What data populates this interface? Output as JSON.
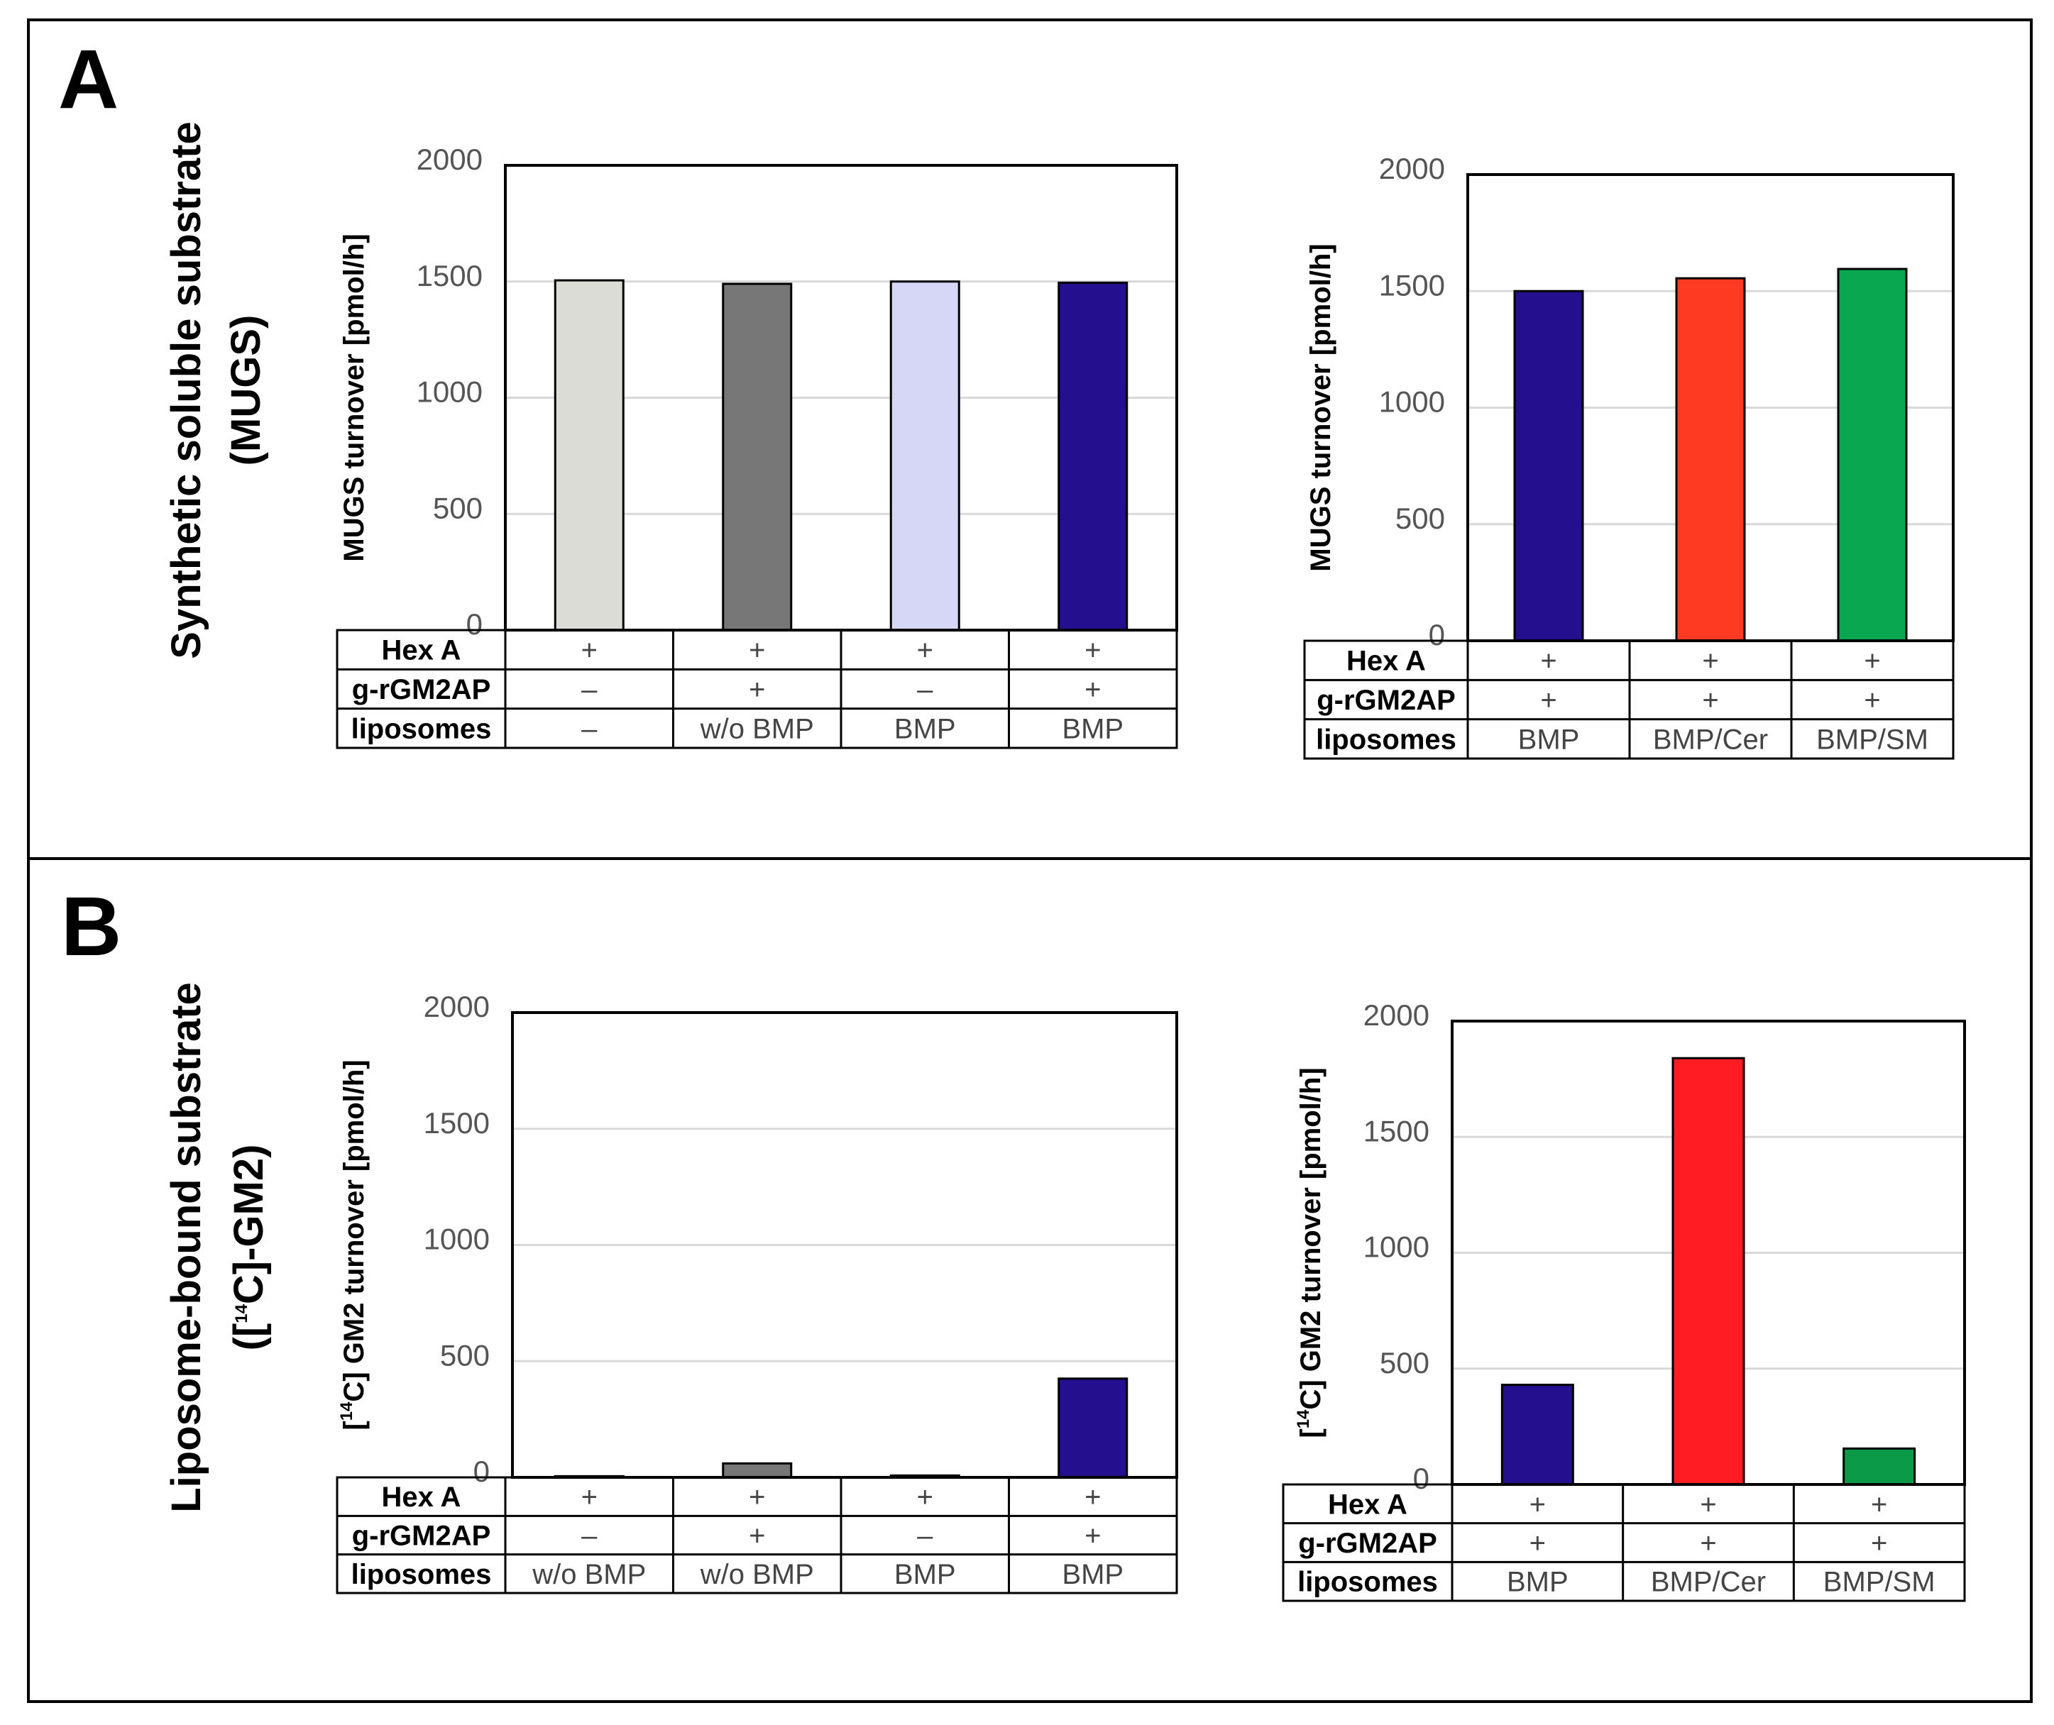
{
  "panels": [
    {
      "letter": "A",
      "row_title_line1": "Synthetic soluble substrate",
      "row_title_line2": "(MUGS)"
    },
    {
      "letter": "B",
      "row_title_line1": "Liposome-bound substrate",
      "row_title_line2_pre": "([",
      "row_title_line2_sup": "14",
      "row_title_line2_post": "C]-GM2)"
    }
  ],
  "row_labels": {
    "hexa": "Hex A",
    "gm2ap": "g-rGM2AP",
    "lipo": "liposomes"
  },
  "chart_data": [
    {
      "id": "A-left",
      "type": "bar",
      "ylabel": "MUGS turnover [pmol/h]",
      "ylim": [
        0,
        2000
      ],
      "yticks": [
        "2000",
        "1500",
        "1000",
        "500",
        "0"
      ],
      "categories": [
        "1",
        "2",
        "3",
        "4"
      ],
      "values": [
        1505,
        1490,
        1500,
        1495
      ],
      "colors": [
        "#dcdcd6",
        "#777777",
        "#d6d6f6",
        "#24108f"
      ],
      "rows": {
        "hexa": [
          "+",
          "+",
          "+",
          "+"
        ],
        "gm2ap": [
          "–",
          "+",
          "–",
          "+"
        ],
        "lipo": [
          "–",
          "w/o BMP",
          "BMP",
          "BMP"
        ]
      }
    },
    {
      "id": "A-right",
      "type": "bar",
      "ylabel": "MUGS turnover [pmol/h]",
      "ylim": [
        0,
        2000
      ],
      "yticks": [
        "2000",
        "1500",
        "1000",
        "500",
        "0"
      ],
      "categories": [
        "1",
        "2",
        "3"
      ],
      "values": [
        1500,
        1555,
        1595
      ],
      "colors": [
        "#24108f",
        "#ff3a22",
        "#09a850"
      ],
      "rows": {
        "hexa": [
          "+",
          "+",
          "+"
        ],
        "gm2ap": [
          "+",
          "+",
          "+"
        ],
        "lipo": [
          "BMP",
          "BMP/Cer",
          "BMP/SM"
        ]
      }
    },
    {
      "id": "B-left",
      "type": "bar",
      "ylabel_pre": "[",
      "ylabel_sup": "14",
      "ylabel_post": "C] GM2 turnover [pmol/h]",
      "ylim": [
        0,
        2000
      ],
      "yticks": [
        "2000",
        "1500",
        "1000",
        "500",
        "0"
      ],
      "categories": [
        "1",
        "2",
        "3",
        "4"
      ],
      "values": [
        5,
        60,
        8,
        425
      ],
      "colors": [
        "#8fd0ea",
        "#777777",
        "#8fd0ea",
        "#24108f"
      ],
      "rows": {
        "hexa": [
          "+",
          "+",
          "+",
          "+"
        ],
        "gm2ap": [
          "–",
          "+",
          "–",
          "+"
        ],
        "lipo": [
          "w/o BMP",
          "w/o BMP",
          "BMP",
          "BMP"
        ]
      }
    },
    {
      "id": "B-right",
      "type": "bar",
      "ylabel_pre": "[",
      "ylabel_sup": "14",
      "ylabel_post": "C] GM2 turnover [pmol/h]",
      "ylim": [
        0,
        2000
      ],
      "yticks": [
        "2000",
        "1500",
        "1000",
        "500",
        "0"
      ],
      "categories": [
        "1",
        "2",
        "3"
      ],
      "values": [
        430,
        1840,
        155
      ],
      "colors": [
        "#24108f",
        "#ff1c22",
        "#0a9a48"
      ],
      "rows": {
        "hexa": [
          "+",
          "+",
          "+"
        ],
        "gm2ap": [
          "+",
          "+",
          "+"
        ],
        "lipo": [
          "BMP",
          "BMP/Cer",
          "BMP/SM"
        ]
      }
    }
  ]
}
